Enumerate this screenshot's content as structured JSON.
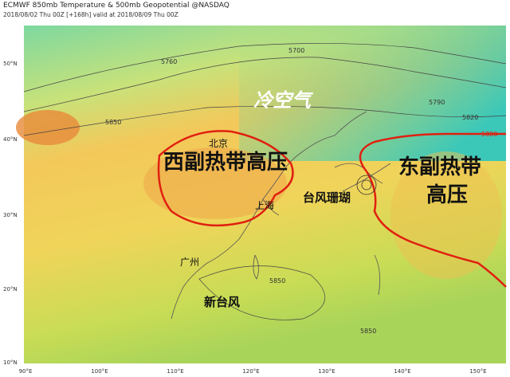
{
  "header": {
    "title": "ECMWF 850mb Temperature & 500mb Geopotential @NASDAQ",
    "subtitle": "2018/08/02 Thu 00Z [+168h] valid at 2018/08/09 Thu 00Z"
  },
  "axes": {
    "latitudes": [
      "50°N",
      "40°N",
      "30°N",
      "20°N",
      "10°N"
    ],
    "longitudes": [
      "90°E",
      "100°E",
      "110°E",
      "120°E",
      "130°E",
      "140°E",
      "150°E"
    ]
  },
  "contour_labels": [
    "5700",
    "5760",
    "5790",
    "5820",
    "5850",
    "5880",
    "5850",
    "5850"
  ],
  "annotations": {
    "cold_air": "冷空气",
    "beijing": "北京",
    "west_high": "西副热带高压",
    "shanghai": "上海",
    "typhoon": "台风珊瑚",
    "east_high_line1": "东副热带",
    "east_high_line2": "高压",
    "guangzhou": "广州",
    "new_typhoon": "新台风"
  }
}
